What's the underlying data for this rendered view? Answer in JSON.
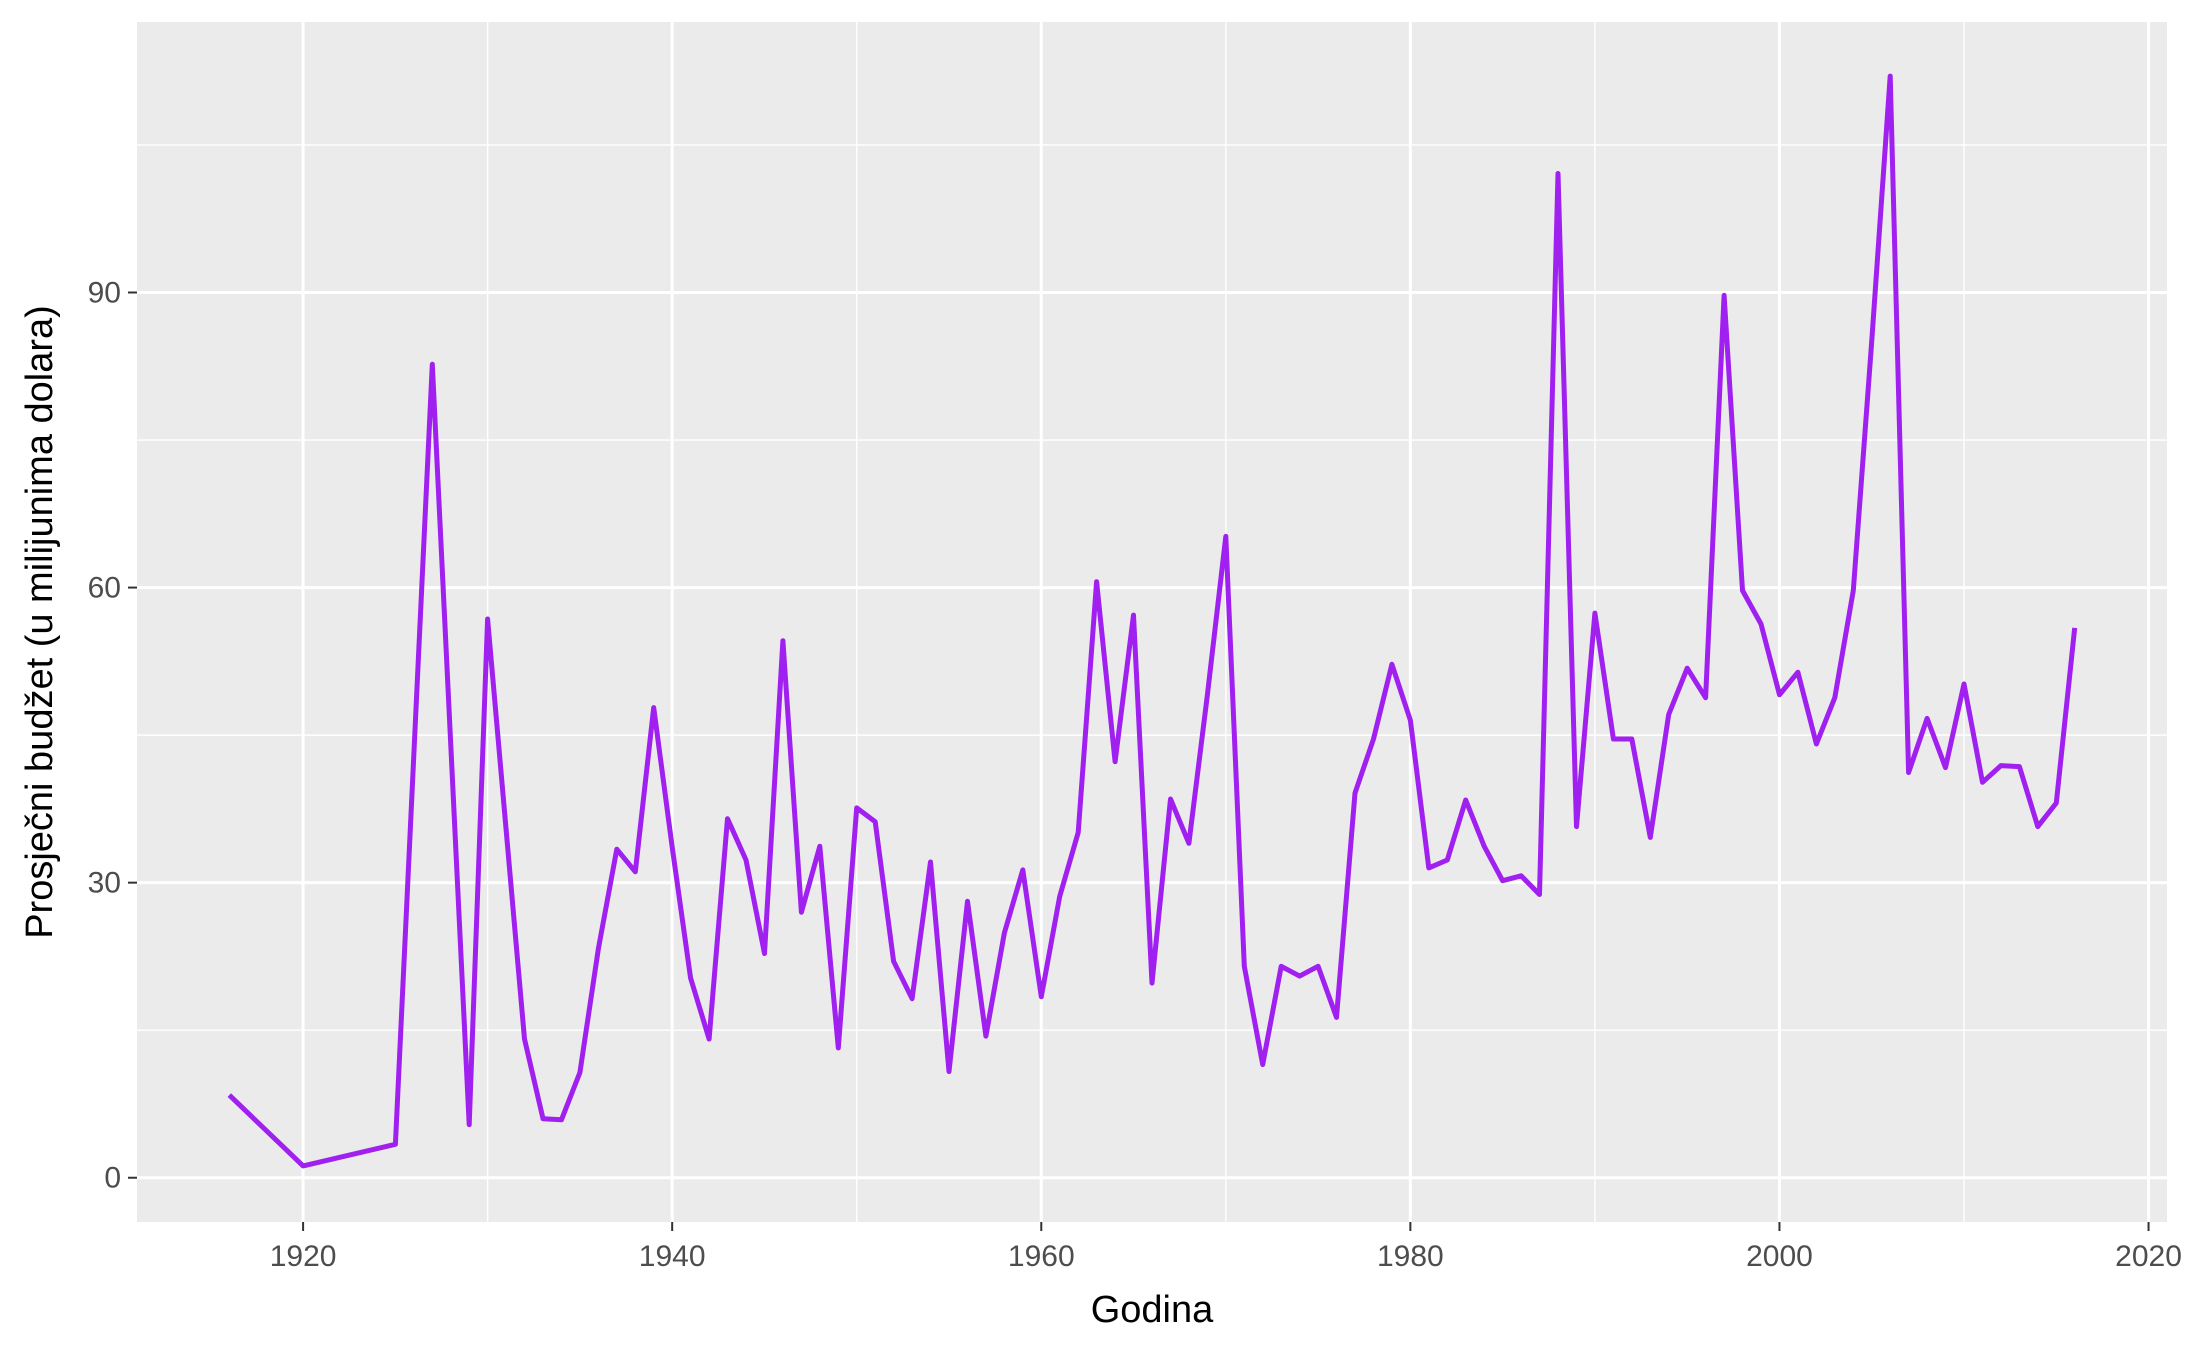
{
  "chart_data": {
    "type": "line",
    "title": "",
    "xlabel": "Godina",
    "ylabel": "Prosječni budžet (u milijunima dolara)",
    "xlim": [
      1911,
      2021
    ],
    "ylim": [
      -4.5,
      117.5
    ],
    "x_ticks": [
      1920,
      1940,
      1960,
      1980,
      2000,
      2020
    ],
    "x_tick_labels": [
      "1920",
      "1940",
      "1960",
      "1980",
      "2000",
      "2020"
    ],
    "y_ticks": [
      0,
      30,
      60,
      90
    ],
    "y_tick_labels": [
      "0",
      "30",
      "60",
      "90"
    ],
    "grid": true,
    "legend": "none",
    "line_color": "#A020F0",
    "panel_background": "#EBEBEB",
    "series": [
      {
        "x": [
          1916,
          1920,
          1925,
          1927,
          1929,
          1930,
          1932,
          1933,
          1934,
          1935,
          1936,
          1937,
          1938,
          1939,
          1940,
          1941,
          1942,
          1943,
          1944,
          1945,
          1946,
          1947,
          1948,
          1949,
          1950,
          1951,
          1952,
          1953,
          1954,
          1955,
          1956,
          1957,
          1958,
          1959,
          1960,
          1961,
          1962,
          1963,
          1964,
          1965,
          1966,
          1967,
          1968,
          1969,
          1970,
          1971,
          1972,
          1973,
          1974,
          1975,
          1976,
          1977,
          1978,
          1979,
          1980,
          1981,
          1982,
          1983,
          1984,
          1985,
          1986,
          1987,
          1988,
          1989,
          1990,
          1991,
          1992,
          1993,
          1994,
          1995,
          1996,
          1997,
          1998,
          1999,
          2000,
          2001,
          2002,
          2003,
          2004,
          2005,
          2006,
          2007,
          2008,
          2009,
          2010,
          2011,
          2012,
          2013,
          2014,
          2015,
          2016
        ],
        "y": [
          8.4,
          1.2,
          3.4,
          82.7,
          5.4,
          56.8,
          14.1,
          6.0,
          5.9,
          10.7,
          23.3,
          33.4,
          31.1,
          47.8,
          33.6,
          20.3,
          14.1,
          36.5,
          32.3,
          22.8,
          54.6,
          27.0,
          33.7,
          13.2,
          37.6,
          36.2,
          22.0,
          18.2,
          32.1,
          10.8,
          28.1,
          14.4,
          24.9,
          31.3,
          18.4,
          28.6,
          35.1,
          60.6,
          42.3,
          57.2,
          19.8,
          38.5,
          34.0,
          49.1,
          65.2,
          21.5,
          11.5,
          21.5,
          20.5,
          21.5,
          16.3,
          39.1,
          44.6,
          52.2,
          46.5,
          31.5,
          32.3,
          38.4,
          33.7,
          30.2,
          30.7,
          28.8,
          102.1,
          35.7,
          57.4,
          44.6,
          44.6,
          34.6,
          47.1,
          51.8,
          48.8,
          89.7,
          59.7,
          56.3,
          49.1,
          51.4,
          44.1,
          48.8,
          59.7,
          85.0,
          112.0,
          41.2,
          46.7,
          41.7,
          50.2,
          40.2,
          41.9,
          41.8,
          35.7,
          38.1,
          55.9
        ]
      }
    ]
  }
}
